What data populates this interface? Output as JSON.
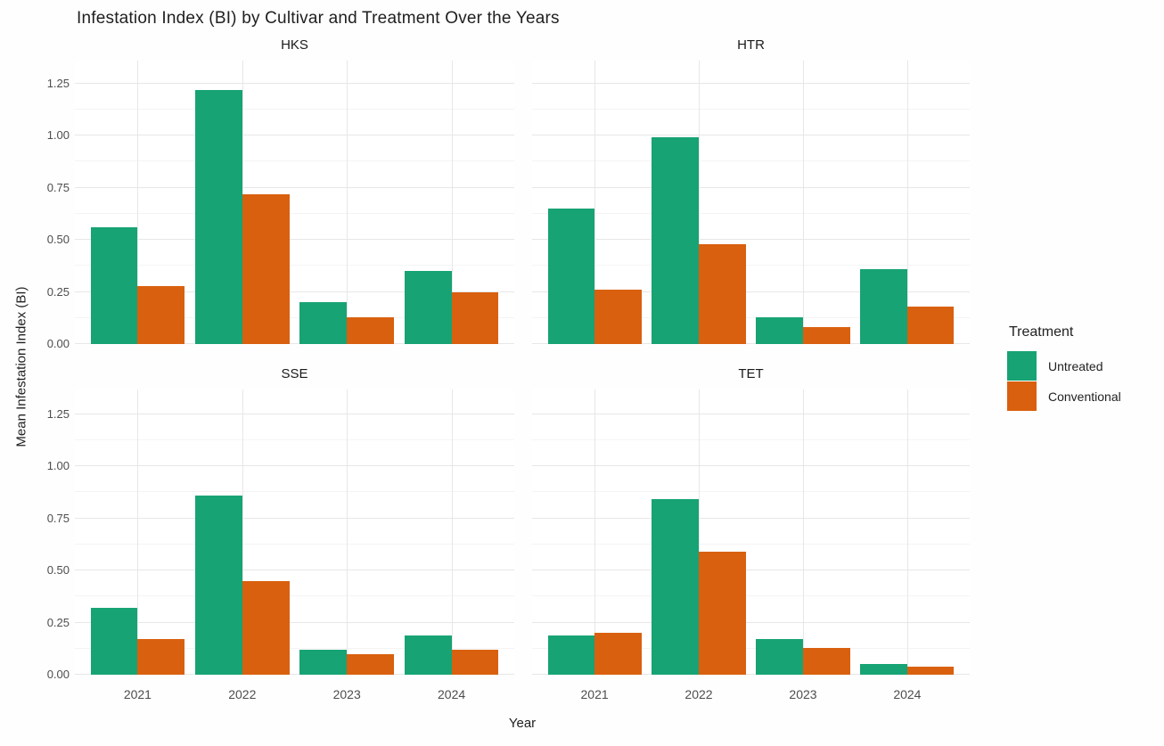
{
  "chart_data": {
    "type": "bar",
    "title": "Infestation Index (BI) by Cultivar and Treatment Over the Years",
    "xlabel": "Year",
    "ylabel": "Mean Infestation Index (BI)",
    "legend_title": "Treatment",
    "legend_position": "right",
    "grid": true,
    "categories": [
      "2021",
      "2022",
      "2023",
      "2024"
    ],
    "y_ticks": [
      0,
      0.25,
      0.5,
      0.75,
      1.0,
      1.25
    ],
    "y_tick_labels": [
      "0.00",
      "0.25",
      "0.50",
      "0.75",
      "1.00",
      "1.25"
    ],
    "ylim": [
      0,
      1.36
    ],
    "series": [
      {
        "name": "Untreated",
        "color": "#17a374"
      },
      {
        "name": "Conventional",
        "color": "#d9600e"
      }
    ],
    "facets": [
      {
        "label": "HKS",
        "series": [
          {
            "name": "Untreated",
            "values": [
              0.56,
              1.22,
              0.2,
              0.35
            ]
          },
          {
            "name": "Conventional",
            "values": [
              0.28,
              0.72,
              0.13,
              0.25
            ]
          }
        ]
      },
      {
        "label": "HTR",
        "series": [
          {
            "name": "Untreated",
            "values": [
              0.65,
              0.99,
              0.13,
              0.36
            ]
          },
          {
            "name": "Conventional",
            "values": [
              0.26,
              0.48,
              0.08,
              0.18
            ]
          }
        ]
      },
      {
        "label": "SSE",
        "series": [
          {
            "name": "Untreated",
            "values": [
              0.32,
              0.86,
              0.12,
              0.19
            ]
          },
          {
            "name": "Conventional",
            "values": [
              0.17,
              0.45,
              0.1,
              0.12
            ]
          }
        ]
      },
      {
        "label": "TET",
        "series": [
          {
            "name": "Untreated",
            "values": [
              0.19,
              0.84,
              0.17,
              0.05
            ]
          },
          {
            "name": "Conventional",
            "values": [
              0.2,
              0.59,
              0.13,
              0.04
            ]
          }
        ]
      }
    ]
  }
}
